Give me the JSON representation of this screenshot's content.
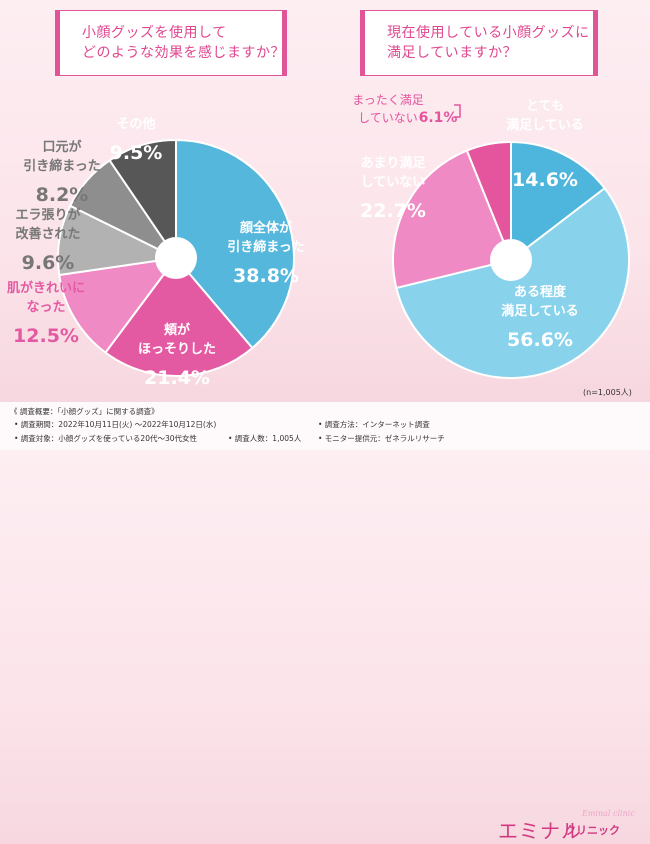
{
  "questions": {
    "left": [
      "小顔グッズを使用して",
      "どのような効果を感じますか？"
    ],
    "right": [
      "現在使用している小顔グッズに",
      "満足していますか？"
    ]
  },
  "chart_data": [
    {
      "type": "pie",
      "title": "小顔グッズを使用してどのような効果を感じますか？",
      "slices": [
        {
          "label": [
            "顔全体が",
            "引き締まった"
          ],
          "value": 38.8,
          "value_text": "38.8%",
          "color": "#55b7dc"
        },
        {
          "label": [
            "頬が",
            "ほっそりした"
          ],
          "value": 21.4,
          "value_text": "21.4%",
          "color": "#e45aa2"
        },
        {
          "label": [
            "肌がきれいに",
            "なった"
          ],
          "value": 12.5,
          "value_text": "12.5%",
          "color": "#f08ac5"
        },
        {
          "label": [
            "エラ張りが",
            "改善された"
          ],
          "value": 9.6,
          "value_text": "9.6%",
          "color": "#b2b2b2"
        },
        {
          "label": [
            "口元が",
            "引き締まった"
          ],
          "value": 8.2,
          "value_text": "8.2%",
          "color": "#8e8e8e"
        },
        {
          "label": [
            "その他"
          ],
          "value": 9.5,
          "value_text": "9.5%",
          "color": "#575757"
        }
      ]
    },
    {
      "type": "pie",
      "title": "現在使用している小顔グッズに満足していますか？",
      "slices": [
        {
          "label": [
            "とても",
            "満足している"
          ],
          "value": 14.6,
          "value_text": "14.6%",
          "color": "#4eb5dc"
        },
        {
          "label": [
            "ある程度",
            "満足している"
          ],
          "value": 56.6,
          "value_text": "56.6%",
          "color": "#88d2ec"
        },
        {
          "label": [
            "あまり満足",
            "していない"
          ],
          "value": 22.7,
          "value_text": "22.7%",
          "color": "#f08ac5"
        },
        {
          "label": [
            "まったく満足",
            "していない"
          ],
          "value": 6.1,
          "value_text": "6.1%",
          "color": "#e4559d"
        }
      ]
    }
  ],
  "sample_size": "(n=1,005人)",
  "footer": {
    "title": "《 調査概要：「小顔グッズ」に関する調査》",
    "period": "• 調査期間：2022年10月11日(火) 〜2022年10月12日(水)",
    "target": "• 調査対象：小顔グッズを使っている20代〜30代女性",
    "count": "• 調査人数：1,005人",
    "method": "• 調査方法：インターネット調査",
    "provider": "• モニター提供元：ゼネラルリサーチ"
  },
  "brand": {
    "main": "エミナル",
    "sub": "クリニック",
    "script": "Eminal clinic"
  }
}
